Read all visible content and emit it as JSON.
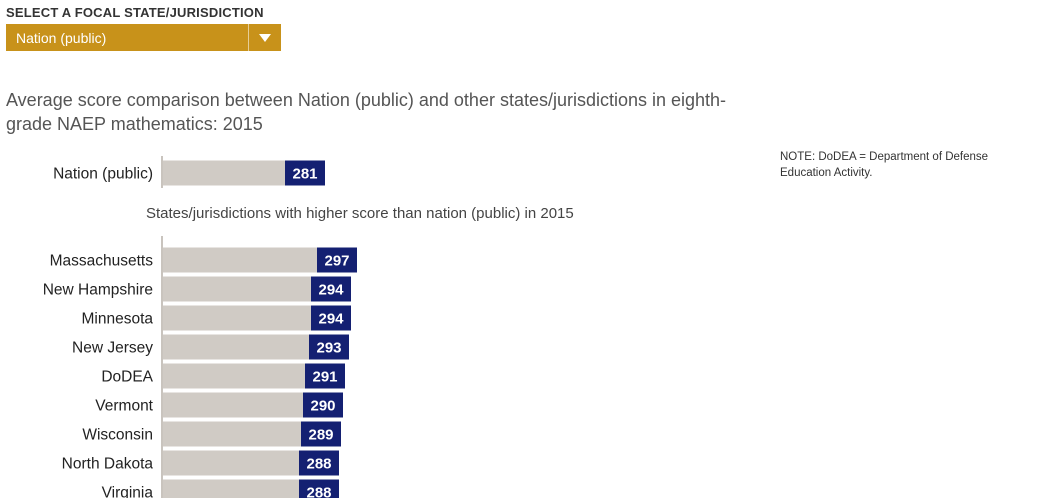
{
  "selector": {
    "label": "SELECT A FOCAL STATE/JURISDICTION",
    "selected": "Nation (public)",
    "arrow_icon": "triangle-down-icon"
  },
  "title": "Average score comparison between Nation (public) and other states/jurisdictions in eighth-grade NAEP mathematics: 2015",
  "note": "NOTE: DoDEA = Department of Defense Education Activity.",
  "colors": {
    "dropdown": "#c8921a",
    "bar": "#d0cbc5",
    "label_box": "#142072",
    "axis": "#c9c4be"
  },
  "chart_data": {
    "type": "bar",
    "orientation": "horizontal",
    "focal": {
      "category": "Nation (public)",
      "value": 281
    },
    "group_label": "States/jurisdictions with higher score than nation (public) in 2015",
    "categories": [
      "Massachusetts",
      "New Hampshire",
      "Minnesota",
      "New Jersey",
      "DoDEA",
      "Vermont",
      "Wisconsin",
      "North Dakota",
      "Virginia"
    ],
    "values": [
      297,
      294,
      294,
      293,
      291,
      290,
      289,
      288,
      288
    ],
    "xlim": [
      200,
      300
    ],
    "grid": false
  }
}
